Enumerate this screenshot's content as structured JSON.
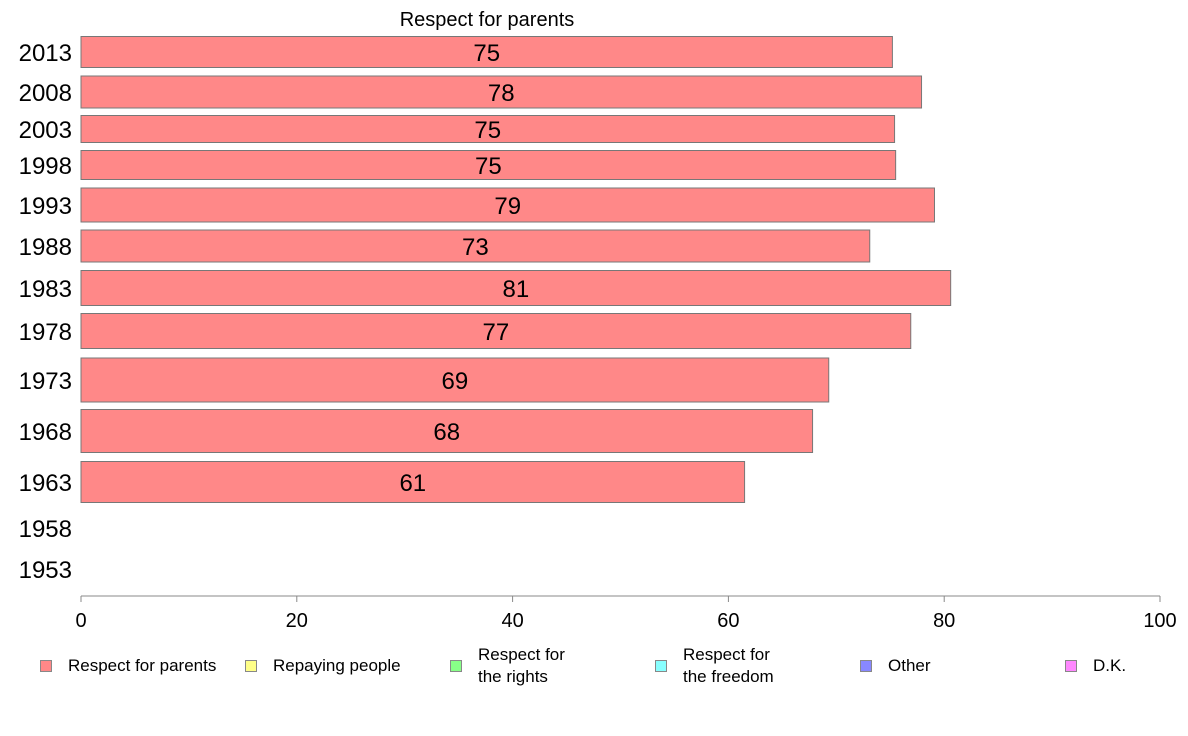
{
  "chart_data": {
    "type": "bar",
    "orientation": "horizontal",
    "title": "Respect for parents",
    "categories": [
      "2013",
      "2008",
      "2003",
      "1998",
      "1993",
      "1988",
      "1983",
      "1978",
      "1973",
      "1968",
      "1963",
      "1958",
      "1953"
    ],
    "values": [
      75.2,
      77.9,
      75.4,
      75.5,
      79.1,
      73.1,
      80.6,
      76.9,
      69.3,
      67.8,
      61.5,
      null,
      null
    ],
    "labels": [
      "75",
      "78",
      "75",
      "75",
      "79",
      "73",
      "81",
      "77",
      "69",
      "68",
      "61",
      "",
      ""
    ],
    "xlim": [
      0,
      100
    ],
    "xticks": [
      "0",
      "20",
      "40",
      "60",
      "80",
      "100"
    ],
    "bar_color": "#ff8888",
    "grid": false,
    "legend_position": "bottom",
    "legend": [
      {
        "label": "Respect for parents",
        "color": "#ff8888"
      },
      {
        "label": "Repaying people",
        "color": "#ffff88"
      },
      {
        "label": "Respect for\nthe rights",
        "color": "#88ff88"
      },
      {
        "label": "Respect for\nthe freedom",
        "color": "#88ffff"
      },
      {
        "label": "Other",
        "color": "#8888ff"
      },
      {
        "label": "D.K.",
        "color": "#ff88ff"
      }
    ]
  }
}
